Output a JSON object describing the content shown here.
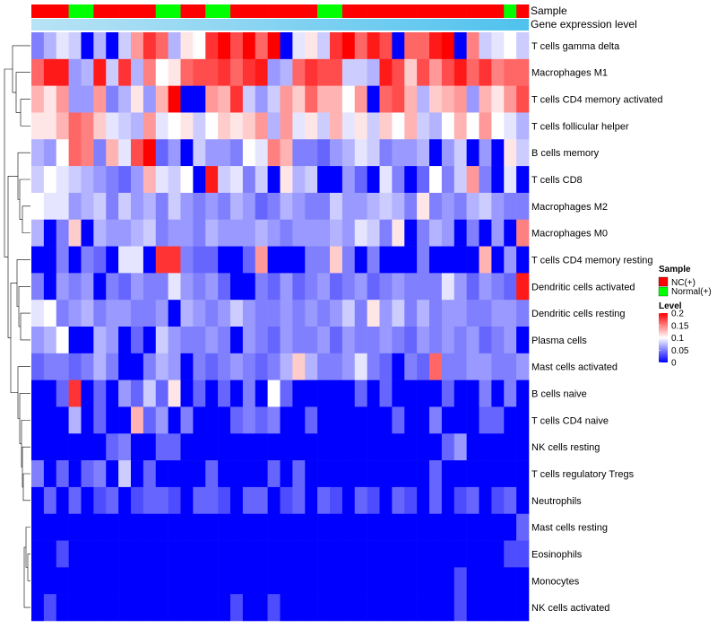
{
  "chart_data": {
    "type": "heatmap",
    "title": "",
    "rows": [
      "T cells gamma delta",
      "Macrophages M1",
      "T cells CD4 memory activated",
      "T cells follicular helper",
      "B cells memory",
      "T cells CD8",
      "Macrophages M2",
      "Macrophages M0",
      "T cells CD4 memory resting",
      "Dendritic cells activated",
      "Dendritic cells resting",
      "Plasma cells",
      "Mast cells activated",
      "B cells naive",
      "T cells CD4 naive",
      "NK cells resting",
      "T cells regulatory  Tregs",
      "Neutrophils",
      "Mast cells resting",
      "Eosinophils",
      "Monocytes",
      "NK cells activated"
    ],
    "n_columns": 40,
    "sample_groups": [
      "NC(+)",
      "NC(+)",
      "NC(+)",
      "Normal(+)",
      "Normal(+)",
      "NC(+)",
      "NC(+)",
      "NC(+)",
      "NC(+)",
      "NC(+)",
      "Normal(+)",
      "Normal(+)",
      "NC(+)",
      "NC(+)",
      "Normal(+)",
      "Normal(+)",
      "NC(+)",
      "NC(+)",
      "NC(+)",
      "NC(+)",
      "NC(+)",
      "NC(+)",
      "NC(+)",
      "Normal(+)",
      "Normal(+)",
      "NC(+)",
      "NC(+)",
      "NC(+)",
      "NC(+)",
      "NC(+)",
      "NC(+)",
      "NC(+)",
      "NC(+)",
      "NC(+)",
      "NC(+)",
      "NC(+)",
      "NC(+)",
      "NC(+)",
      "Normal(+)",
      "NC(+)"
    ],
    "level_range": [
      0,
      0.2
    ],
    "annotation_labels": [
      "Sample",
      "Gene expression level"
    ],
    "legend_sample": {
      "title": "Sample",
      "entries": [
        {
          "label": "NC(+)",
          "color": "#FF0000"
        },
        {
          "label": "Normal(+)",
          "color": "#00FF00"
        }
      ]
    },
    "legend_level": {
      "title": "Level",
      "ticks": [
        "0.2",
        "0.15",
        "0.1",
        "0.05",
        "0"
      ],
      "tick_values": [
        0.2,
        0.15,
        0.1,
        0.05,
        0
      ]
    },
    "gene_expression_bar_colors": [
      "#B9E3F5",
      "#4FC2EE"
    ],
    "color_scale": {
      "low": "#0000FF",
      "mid": "#FFFFFF",
      "high": "#FF0000"
    },
    "matrix": [
      [
        0.05,
        0.07,
        0.09,
        0.08,
        0.0,
        0.07,
        0.0,
        0.08,
        0.14,
        0.18,
        0.16,
        0.07,
        0.11,
        0.1,
        0.18,
        0.2,
        0.17,
        0.2,
        0.16,
        0.2,
        0.0,
        0.09,
        0.11,
        0.08,
        0.18,
        0.2,
        0.16,
        0.19,
        0.17,
        0.0,
        0.16,
        0.16,
        0.19,
        0.2,
        0.0,
        0.15,
        0.08,
        0.09,
        0.1,
        0.08
      ],
      [
        0.16,
        0.19,
        0.19,
        0.06,
        0.07,
        0.19,
        0.08,
        0.18,
        0.07,
        0.15,
        0.1,
        0.11,
        0.16,
        0.17,
        0.17,
        0.18,
        0.16,
        0.18,
        0.19,
        0.06,
        0.07,
        0.16,
        0.18,
        0.17,
        0.17,
        0.08,
        0.08,
        0.07,
        0.19,
        0.17,
        0.12,
        0.17,
        0.14,
        0.17,
        0.19,
        0.16,
        0.18,
        0.15,
        0.16,
        0.16
      ],
      [
        0.13,
        0.11,
        0.14,
        0.06,
        0.06,
        0.14,
        0.05,
        0.07,
        0.11,
        0.06,
        0.13,
        0.2,
        0.0,
        0.0,
        0.14,
        0.13,
        0.18,
        0.08,
        0.06,
        0.08,
        0.14,
        0.12,
        0.16,
        0.13,
        0.13,
        0.1,
        0.14,
        0.0,
        0.16,
        0.17,
        0.13,
        0.07,
        0.12,
        0.13,
        0.14,
        0.06,
        0.13,
        0.11,
        0.14,
        0.17
      ],
      [
        0.11,
        0.11,
        0.13,
        0.16,
        0.15,
        0.12,
        0.09,
        0.08,
        0.07,
        0.14,
        0.09,
        0.1,
        0.11,
        0.08,
        0.1,
        0.12,
        0.11,
        0.12,
        0.14,
        0.07,
        0.14,
        0.09,
        0.11,
        0.08,
        0.13,
        0.09,
        0.11,
        0.08,
        0.12,
        0.1,
        0.13,
        0.08,
        0.07,
        0.1,
        0.13,
        0.1,
        0.14,
        0.1,
        0.09,
        0.07
      ],
      [
        0.07,
        0.06,
        0.1,
        0.16,
        0.15,
        0.05,
        0.13,
        0.09,
        0.17,
        0.2,
        0.04,
        0.06,
        0.0,
        0.08,
        0.06,
        0.06,
        0.05,
        0.1,
        0.09,
        0.15,
        0.13,
        0.05,
        0.05,
        0.04,
        0.06,
        0.07,
        0.09,
        0.08,
        0.05,
        0.06,
        0.06,
        0.07,
        0.0,
        0.06,
        0.08,
        0.0,
        0.06,
        0.0,
        0.11,
        0.08
      ],
      [
        0.08,
        0.1,
        0.09,
        0.08,
        0.07,
        0.06,
        0.05,
        0.04,
        0.06,
        0.13,
        0.09,
        0.08,
        0.1,
        0.0,
        0.19,
        0.08,
        0.09,
        0.05,
        0.08,
        0.0,
        0.11,
        0.07,
        0.08,
        0.0,
        0.0,
        0.06,
        0.04,
        0.0,
        0.09,
        0.05,
        0.0,
        0.04,
        0.1,
        0.05,
        0.08,
        0.14,
        0.05,
        0.0,
        0.09,
        0.0
      ],
      [
        0.1,
        0.09,
        0.09,
        0.06,
        0.07,
        0.08,
        0.05,
        0.08,
        0.06,
        0.07,
        0.05,
        0.08,
        0.06,
        0.05,
        0.06,
        0.05,
        0.07,
        0.06,
        0.04,
        0.05,
        0.07,
        0.06,
        0.05,
        0.05,
        0.08,
        0.06,
        0.06,
        0.07,
        0.08,
        0.07,
        0.05,
        0.11,
        0.05,
        0.06,
        0.05,
        0.07,
        0.08,
        0.06,
        0.05,
        0.05
      ],
      [
        0.07,
        0.0,
        0.05,
        0.12,
        0.0,
        0.07,
        0.06,
        0.06,
        0.07,
        0.08,
        0.05,
        0.06,
        0.06,
        0.05,
        0.07,
        0.06,
        0.06,
        0.06,
        0.07,
        0.06,
        0.05,
        0.06,
        0.06,
        0.06,
        0.07,
        0.06,
        0.09,
        0.08,
        0.05,
        0.11,
        0.0,
        0.05,
        0.07,
        0.06,
        0.0,
        0.05,
        0.0,
        0.06,
        0.0,
        0.15
      ],
      [
        0.0,
        0.0,
        0.05,
        0.0,
        0.05,
        0.04,
        0.0,
        0.09,
        0.09,
        0.0,
        0.18,
        0.18,
        0.05,
        0.04,
        0.04,
        0.0,
        0.0,
        0.04,
        0.14,
        0.0,
        0.0,
        0.0,
        0.05,
        0.05,
        0.12,
        0.05,
        0.0,
        0.05,
        0.0,
        0.0,
        0.0,
        0.05,
        0.0,
        0.0,
        0.0,
        0.0,
        0.13,
        0.0,
        0.06,
        0.0
      ],
      [
        0.05,
        0.0,
        0.06,
        0.05,
        0.06,
        0.0,
        0.05,
        0.04,
        0.06,
        0.05,
        0.05,
        0.09,
        0.06,
        0.05,
        0.06,
        0.04,
        0.0,
        0.0,
        0.05,
        0.04,
        0.06,
        0.04,
        0.05,
        0.06,
        0.04,
        0.05,
        0.06,
        0.04,
        0.05,
        0.06,
        0.05,
        0.05,
        0.05,
        0.09,
        0.06,
        0.04,
        0.06,
        0.05,
        0.04,
        0.19
      ],
      [
        0.09,
        0.1,
        0.05,
        0.06,
        0.07,
        0.05,
        0.06,
        0.06,
        0.05,
        0.05,
        0.06,
        0.0,
        0.07,
        0.06,
        0.05,
        0.06,
        0.08,
        0.06,
        0.05,
        0.05,
        0.06,
        0.05,
        0.06,
        0.05,
        0.06,
        0.08,
        0.05,
        0.11,
        0.06,
        0.08,
        0.05,
        0.07,
        0.05,
        0.06,
        0.06,
        0.05,
        0.05,
        0.06,
        0.06,
        0.05
      ],
      [
        0.06,
        0.07,
        0.1,
        0.0,
        0.0,
        0.07,
        0.06,
        0.0,
        0.04,
        0.0,
        0.08,
        0.06,
        0.05,
        0.05,
        0.06,
        0.05,
        0.0,
        0.06,
        0.05,
        0.04,
        0.06,
        0.05,
        0.05,
        0.06,
        0.04,
        0.06,
        0.05,
        0.05,
        0.06,
        0.05,
        0.04,
        0.06,
        0.05,
        0.06,
        0.05,
        0.06,
        0.04,
        0.05,
        0.06,
        0.0
      ],
      [
        0.04,
        0.05,
        0.05,
        0.04,
        0.05,
        0.07,
        0.05,
        0.0,
        0.0,
        0.05,
        0.07,
        0.06,
        0.0,
        0.05,
        0.04,
        0.05,
        0.06,
        0.05,
        0.04,
        0.05,
        0.07,
        0.12,
        0.07,
        0.05,
        0.05,
        0.06,
        0.09,
        0.05,
        0.04,
        0.0,
        0.05,
        0.04,
        0.16,
        0.05,
        0.05,
        0.06,
        0.06,
        0.05,
        0.05,
        0.06
      ],
      [
        0.0,
        0.0,
        0.04,
        0.18,
        0.0,
        0.04,
        0.0,
        0.06,
        0.04,
        0.08,
        0.04,
        0.11,
        0.0,
        0.04,
        0.0,
        0.04,
        0.0,
        0.05,
        0.0,
        0.1,
        0.04,
        0.0,
        0.0,
        0.0,
        0.0,
        0.0,
        0.04,
        0.0,
        0.04,
        0.0,
        0.0,
        0.0,
        0.0,
        0.04,
        0.0,
        0.0,
        0.05,
        0.0,
        0.05,
        0.0
      ],
      [
        0.0,
        0.0,
        0.0,
        0.07,
        0.0,
        0.04,
        0.0,
        0.0,
        0.13,
        0.04,
        0.06,
        0.0,
        0.05,
        0.0,
        0.0,
        0.0,
        0.04,
        0.05,
        0.04,
        0.05,
        0.0,
        0.0,
        0.04,
        0.0,
        0.0,
        0.0,
        0.0,
        0.0,
        0.0,
        0.04,
        0.0,
        0.0,
        0.05,
        0.0,
        0.0,
        0.0,
        0.04,
        0.04,
        0.0,
        0.0
      ],
      [
        0.0,
        0.0,
        0.0,
        0.0,
        0.0,
        0.0,
        0.04,
        0.05,
        0.0,
        0.0,
        0.04,
        0.04,
        0.0,
        0.0,
        0.0,
        0.0,
        0.0,
        0.0,
        0.0,
        0.0,
        0.0,
        0.0,
        0.0,
        0.0,
        0.0,
        0.0,
        0.0,
        0.0,
        0.0,
        0.0,
        0.0,
        0.0,
        0.0,
        0.04,
        0.06,
        0.0,
        0.0,
        0.0,
        0.0,
        0.0
      ],
      [
        0.05,
        0.0,
        0.04,
        0.0,
        0.04,
        0.05,
        0.0,
        0.08,
        0.0,
        0.04,
        0.0,
        0.0,
        0.0,
        0.0,
        0.04,
        0.0,
        0.0,
        0.0,
        0.0,
        0.04,
        0.0,
        0.04,
        0.0,
        0.0,
        0.0,
        0.0,
        0.0,
        0.0,
        0.0,
        0.0,
        0.0,
        0.0,
        0.04,
        0.0,
        0.0,
        0.0,
        0.0,
        0.0,
        0.0,
        0.0
      ],
      [
        0.0,
        0.04,
        0.0,
        0.04,
        0.0,
        0.03,
        0.04,
        0.0,
        0.03,
        0.04,
        0.04,
        0.03,
        0.0,
        0.04,
        0.04,
        0.03,
        0.0,
        0.04,
        0.04,
        0.0,
        0.03,
        0.04,
        0.0,
        0.04,
        0.03,
        0.0,
        0.04,
        0.03,
        0.0,
        0.04,
        0.03,
        0.0,
        0.04,
        0.0,
        0.03,
        0.04,
        0.0,
        0.03,
        0.04,
        0.0
      ],
      [
        0.0,
        0.0,
        0.0,
        0.0,
        0.0,
        0.0,
        0.0,
        0.0,
        0.0,
        0.0,
        0.0,
        0.0,
        0.0,
        0.0,
        0.0,
        0.0,
        0.0,
        0.0,
        0.0,
        0.0,
        0.0,
        0.0,
        0.0,
        0.0,
        0.0,
        0.0,
        0.0,
        0.0,
        0.0,
        0.0,
        0.0,
        0.0,
        0.0,
        0.0,
        0.0,
        0.0,
        0.0,
        0.0,
        0.0,
        0.04
      ],
      [
        0.0,
        0.0,
        0.03,
        0.0,
        0.0,
        0.0,
        0.0,
        0.0,
        0.0,
        0.0,
        0.0,
        0.0,
        0.0,
        0.0,
        0.0,
        0.0,
        0.0,
        0.0,
        0.0,
        0.0,
        0.0,
        0.0,
        0.0,
        0.0,
        0.0,
        0.0,
        0.0,
        0.0,
        0.0,
        0.0,
        0.0,
        0.0,
        0.0,
        0.0,
        0.0,
        0.0,
        0.0,
        0.0,
        0.03,
        0.03
      ],
      [
        0.0,
        0.0,
        0.0,
        0.0,
        0.0,
        0.0,
        0.0,
        0.0,
        0.0,
        0.0,
        0.0,
        0.0,
        0.0,
        0.0,
        0.0,
        0.0,
        0.0,
        0.0,
        0.0,
        0.0,
        0.0,
        0.0,
        0.0,
        0.0,
        0.0,
        0.0,
        0.0,
        0.0,
        0.0,
        0.0,
        0.0,
        0.0,
        0.0,
        0.0,
        0.03,
        0.0,
        0.0,
        0.0,
        0.0,
        0.0
      ],
      [
        0.0,
        0.03,
        0.0,
        0.0,
        0.0,
        0.0,
        0.0,
        0.0,
        0.0,
        0.0,
        0.0,
        0.0,
        0.0,
        0.0,
        0.0,
        0.0,
        0.03,
        0.0,
        0.0,
        0.03,
        0.0,
        0.0,
        0.0,
        0.0,
        0.0,
        0.0,
        0.0,
        0.0,
        0.0,
        0.0,
        0.0,
        0.0,
        0.0,
        0.0,
        0.03,
        0.0,
        0.0,
        0.0,
        0.0,
        0.0
      ]
    ]
  }
}
